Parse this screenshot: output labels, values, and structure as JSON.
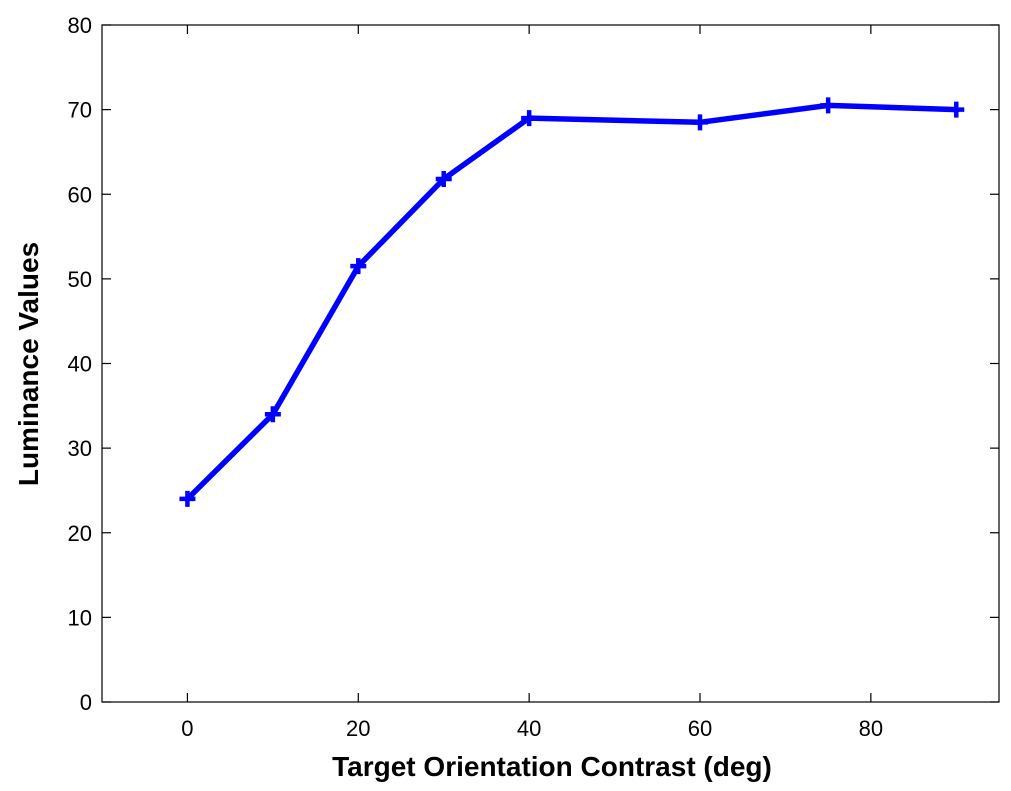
{
  "chart_data": {
    "type": "line",
    "title": "",
    "xlabel": "Target Orientation Contrast (deg)",
    "ylabel": "Luminance Values",
    "xlim": [
      -10,
      95
    ],
    "ylim": [
      0,
      80
    ],
    "xticks": [
      0,
      20,
      40,
      60,
      80
    ],
    "yticks": [
      0,
      10,
      20,
      30,
      40,
      50,
      60,
      70,
      80
    ],
    "grid": false,
    "series": [
      {
        "color": "#0000ff",
        "marker": "plus",
        "points": [
          {
            "x": 0,
            "y": 24
          },
          {
            "x": 10,
            "y": 34
          },
          {
            "x": 20,
            "y": 51.5
          },
          {
            "x": 30,
            "y": 61.8
          },
          {
            "x": 40,
            "y": 69
          },
          {
            "x": 60,
            "y": 68.5
          },
          {
            "x": 75,
            "y": 70.5
          },
          {
            "x": 90,
            "y": 70
          }
        ]
      }
    ]
  }
}
